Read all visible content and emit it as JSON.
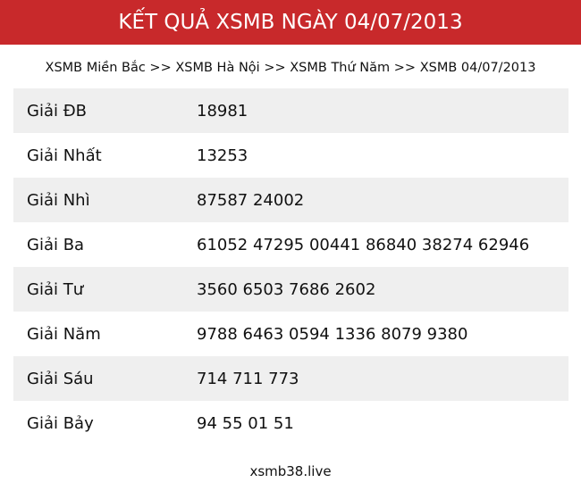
{
  "header": {
    "title": "KẾT QUẢ XSMB NGÀY 04/07/2013"
  },
  "breadcrumb": {
    "items": [
      "XSMB Miền Bắc",
      "XSMB Hà Nội",
      "XSMB Thứ Năm",
      "XSMB 04/07/2013"
    ],
    "separator": ">>"
  },
  "results": [
    {
      "label": "Giải ĐB",
      "value": "18981"
    },
    {
      "label": "Giải Nhất",
      "value": "13253"
    },
    {
      "label": "Giải Nhì",
      "value": "87587 24002"
    },
    {
      "label": "Giải Ba",
      "value": "61052 47295 00441 86840 38274 62946"
    },
    {
      "label": "Giải Tư",
      "value": "3560 6503 7686 2602"
    },
    {
      "label": "Giải Năm",
      "value": "9788 6463 0594 1336 8079 9380"
    },
    {
      "label": "Giải Sáu",
      "value": "714 711 773"
    },
    {
      "label": "Giải Bảy",
      "value": "94 55 01 51"
    }
  ],
  "footer": {
    "site": "xsmb38.live"
  },
  "colors": {
    "header_bg": "#c8292b",
    "row_stripe": "#efefef"
  }
}
